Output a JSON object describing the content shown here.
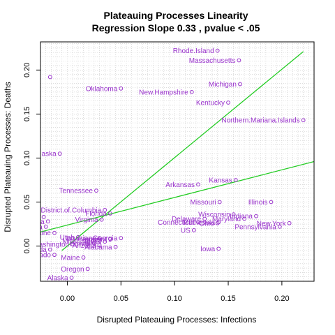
{
  "chart_data": {
    "type": "scatter",
    "title": "Plateauing Processes Linearity",
    "subtitle": "Regression Slope 0.33 , pvalue  < .05",
    "xlabel": "Disrupted Plateauing Processes: Infections",
    "ylabel": "Disrupted Plateauing Processes: Deaths",
    "xlim": [
      -0.025,
      0.23
    ],
    "ylim": [
      -0.04,
      0.232
    ],
    "x_ticks": [
      {
        "value": 0.0,
        "label": "0.00"
      },
      {
        "value": 0.05,
        "label": "0.05"
      },
      {
        "value": 0.1,
        "label": "0.10"
      },
      {
        "value": 0.15,
        "label": "0.15"
      },
      {
        "value": 0.2,
        "label": "0.20"
      }
    ],
    "y_ticks": [
      {
        "value": 0.0,
        "label": "0.00"
      },
      {
        "value": 0.05,
        "label": "0.05"
      },
      {
        "value": 0.1,
        "label": "0.10"
      },
      {
        "value": 0.15,
        "label": "0.15"
      },
      {
        "value": 0.2,
        "label": "0.20"
      }
    ],
    "grid": true,
    "colors": {
      "points": "#9932cc",
      "fit_lines": "#22cc22",
      "grid": "#c8c8c8"
    },
    "points": [
      {
        "label": "Rhode.Island",
        "x": 0.14,
        "y": 0.222
      },
      {
        "label": "Massachusetts",
        "x": 0.16,
        "y": 0.211
      },
      {
        "label": "",
        "x": -0.016,
        "y": 0.192
      },
      {
        "label": "Michigan",
        "x": 0.161,
        "y": 0.184
      },
      {
        "label": "Oklahoma",
        "x": 0.05,
        "y": 0.179
      },
      {
        "label": "New.Hampshire",
        "x": 0.116,
        "y": 0.175
      },
      {
        "label": "Kentucky",
        "x": 0.15,
        "y": 0.163
      },
      {
        "label": "Northern.Mariana.Islands",
        "x": 0.22,
        "y": 0.143
      },
      {
        "label": "aska",
        "x": -0.007,
        "y": 0.105
      },
      {
        "label": "Kansas",
        "x": 0.157,
        "y": 0.075
      },
      {
        "label": "Arkansas",
        "x": 0.122,
        "y": 0.07
      },
      {
        "label": "Tennessee",
        "x": 0.027,
        "y": 0.063
      },
      {
        "label": "Missouri",
        "x": 0.142,
        "y": 0.05
      },
      {
        "label": "Illinois",
        "x": 0.19,
        "y": 0.05
      },
      {
        "label": "District.of.Columbia",
        "x": 0.035,
        "y": 0.041
      },
      {
        "label": "Florida",
        "x": 0.04,
        "y": 0.037
      },
      {
        "label": "Wisconsin",
        "x": 0.155,
        "y": 0.036
      },
      {
        "label": "Indiana",
        "x": 0.176,
        "y": 0.034
      },
      {
        "label": "Delaware",
        "x": 0.128,
        "y": 0.031
      },
      {
        "label": "Maryland",
        "x": 0.165,
        "y": 0.031
      },
      {
        "label": "Virginia",
        "x": 0.032,
        "y": 0.03
      },
      {
        "label": "Connecticut",
        "x": 0.122,
        "y": 0.027
      },
      {
        "label": "Minnesota",
        "x": 0.141,
        "y": 0.027
      },
      {
        "label": "New.York",
        "x": 0.207,
        "y": 0.026
      },
      {
        "label": "Ohio",
        "x": 0.14,
        "y": 0.026
      },
      {
        "label": "Pennsylvania",
        "x": 0.198,
        "y": 0.022
      },
      {
        "label": "US",
        "x": 0.118,
        "y": 0.018
      },
      {
        "label": "Wyoming",
        "x": -0.022,
        "y": 0.033
      },
      {
        "label": "Dakota",
        "x": -0.018,
        "y": 0.028
      },
      {
        "label": "Dakota",
        "x": -0.02,
        "y": 0.022
      },
      {
        "label": "Maine",
        "x": -0.012,
        "y": 0.015
      },
      {
        "label": "Utah",
        "x": 0.01,
        "y": 0.01
      },
      {
        "label": "Louisiana",
        "x": 0.03,
        "y": 0.009
      },
      {
        "label": "Georgia",
        "x": 0.05,
        "y": 0.009
      },
      {
        "label": "Vermont",
        "x": 0.04,
        "y": 0.008
      },
      {
        "label": "Mississippi",
        "x": 0.03,
        "y": 0.006
      },
      {
        "label": "Texas",
        "x": 0.035,
        "y": 0.005
      },
      {
        "label": "Hawaii",
        "x": 0.025,
        "y": 0.003
      },
      {
        "label": "Arizona",
        "x": 0.03,
        "y": 0.001
      },
      {
        "label": "Washington",
        "x": 0.005,
        "y": 0.002
      },
      {
        "label": "Alabama",
        "x": 0.045,
        "y": -0.001
      },
      {
        "label": "Iowa",
        "x": 0.141,
        "y": -0.003
      },
      {
        "label": "Nevada",
        "x": -0.016,
        "y": -0.004
      },
      {
        "label": "Colorado",
        "x": -0.012,
        "y": -0.01
      },
      {
        "label": "Maine",
        "x": 0.015,
        "y": -0.013
      },
      {
        "label": "Oregon",
        "x": 0.019,
        "y": -0.026
      },
      {
        "label": "Alaska",
        "x": 0.004,
        "y": -0.036
      }
    ],
    "fit_lines": [
      {
        "name": "fit-line-steep",
        "x": [
          -0.005,
          0.22
        ],
        "y": [
          -0.005,
          0.221
        ]
      },
      {
        "name": "fit-line-shallow",
        "x": [
          -0.025,
          0.23
        ],
        "y": [
          0.016,
          0.096
        ]
      }
    ]
  }
}
